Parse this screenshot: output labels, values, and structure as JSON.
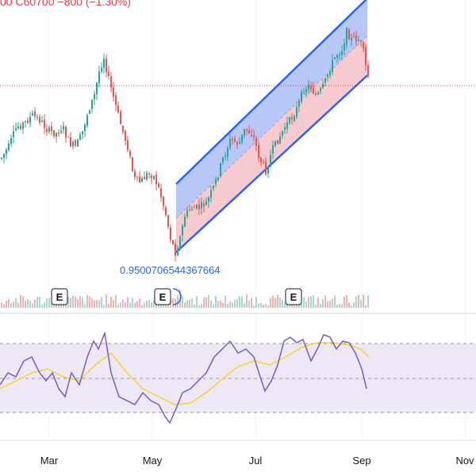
{
  "legend": {
    "text": "00 C60700 −800 (−1.30%)"
  },
  "chart_data": {
    "type": "candlestick",
    "x_labels": [
      "Mar",
      "May",
      "Jul",
      "Sep",
      "Nov"
    ],
    "regression_label": "0.9500706544367664",
    "earnings_markers": [
      "E",
      "E",
      "E"
    ],
    "colors": {
      "up": "#26a69a",
      "down": "#ef5350",
      "channel_line": "#2962ff",
      "channel_upper_fill": "#aabdf6",
      "channel_lower_fill": "#f5c1c7",
      "rsi_line": "#7e57c2",
      "rsi_ma": "#f5d332",
      "rsi_band": "#ede7f6",
      "price_line": "#f23645"
    },
    "rsi": {
      "upper": 70,
      "middle": 50,
      "lower": 30
    }
  }
}
